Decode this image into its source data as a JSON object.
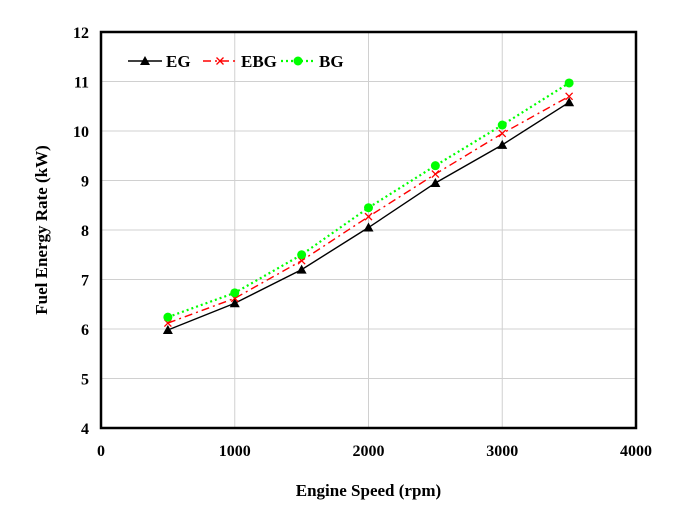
{
  "chart_data": {
    "type": "line",
    "title": "",
    "xlabel": "Engine Speed (rpm)",
    "ylabel": "Fuel Energy Rate  (kW)",
    "xlim": [
      0,
      4000
    ],
    "ylim": [
      4,
      12
    ],
    "xticks": [
      0,
      1000,
      2000,
      3000,
      4000
    ],
    "yticks": [
      4,
      5,
      6,
      7,
      8,
      9,
      10,
      11,
      12
    ],
    "xtick_labels": [
      "0",
      "1000",
      "2000",
      "3000",
      "4000"
    ],
    "ytick_labels": [
      "4",
      "5",
      "6",
      "7",
      "8",
      "9",
      "10",
      "11",
      "12"
    ],
    "grid": true,
    "legend": "top-left",
    "x": [
      500,
      1000,
      1500,
      2000,
      2500,
      3000,
      3500
    ],
    "series": [
      {
        "name": "EG",
        "values": [
          5.98,
          6.52,
          7.2,
          8.05,
          8.95,
          9.72,
          10.58
        ],
        "color": "#000000",
        "dash": "",
        "marker": "triangle"
      },
      {
        "name": "EBG",
        "values": [
          6.12,
          6.62,
          7.38,
          8.27,
          9.13,
          9.95,
          10.7
        ],
        "color": "#ff0000",
        "dash": "8,4,2,4",
        "marker": "x"
      },
      {
        "name": "BG",
        "values": [
          6.24,
          6.73,
          7.5,
          8.45,
          9.3,
          10.12,
          10.97
        ],
        "color": "#00ff00",
        "dash": "2,3",
        "marker": "circle"
      }
    ]
  }
}
